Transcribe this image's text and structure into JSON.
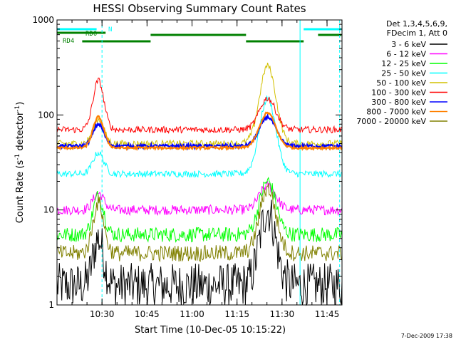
{
  "chart_data": {
    "type": "line",
    "title": "HESSI Observing Summary Count Rates",
    "xlabel": "Start Time (10-Dec-05 10:15:22)",
    "ylabel": "Count Rate (s⁻¹ detector⁻¹)",
    "ylabel_main": "Count Rate (s",
    "ylabel_sup1": "-1",
    "ylabel_mid": " detector",
    "ylabel_sup2": "-1",
    "ylabel_end": ")",
    "y_scale": "log",
    "ylim": [
      1,
      1000
    ],
    "xlim_minutes": [
      10.25,
      11.833
    ],
    "x_ticks": [
      {
        "label": "10:30",
        "t": 10.5
      },
      {
        "label": "10:45",
        "t": 10.75
      },
      {
        "label": "11:00",
        "t": 11.0
      },
      {
        "label": "11:15",
        "t": 11.25
      },
      {
        "label": "11:30",
        "t": 11.5
      },
      {
        "label": "11:45",
        "t": 11.75
      }
    ],
    "y_ticks": [
      {
        "label": "1",
        "v": 1
      },
      {
        "label": "10",
        "v": 10
      },
      {
        "label": "100",
        "v": 100
      },
      {
        "label": "1000",
        "v": 1000
      }
    ],
    "legend_header": [
      "Det 1,3,4,5,6,9,",
      "FDecim 1, Att 0"
    ],
    "legend_position": "right",
    "footer_date": "7-Dec-2009 17:38",
    "flag_labels": {
      "rd0": "RD0",
      "rd4": "RD4",
      "n": "N"
    },
    "series": [
      {
        "name": "3 - 6 keV",
        "color": "#000000",
        "base": 1.6,
        "peak1": 5,
        "peak2": 10
      },
      {
        "name": "6 - 12 keV",
        "color": "#ff00ff",
        "base": 10,
        "peak1": 15,
        "peak2": 18
      },
      {
        "name": "12 - 25 keV",
        "color": "#00ff00",
        "base": 5.5,
        "peak1": 14,
        "peak2": 20
      },
      {
        "name": "25 - 50 keV",
        "color": "#00ffff",
        "base": 24,
        "peak1": 40,
        "peak2": 150
      },
      {
        "name": "50 - 100 keV",
        "color": "#d2c000",
        "base": 50,
        "peak1": 90,
        "peak2": 330
      },
      {
        "name": "100 - 300 keV",
        "color": "#ff0000",
        "base": 70,
        "peak1": 230,
        "peak2": 150
      },
      {
        "name": "300 - 800 keV",
        "color": "#0000ff",
        "base": 47,
        "peak1": 80,
        "peak2": 95
      },
      {
        "name": "800 - 7000 keV",
        "color": "#ff8000",
        "base": 45,
        "peak1": 95,
        "peak2": 105
      },
      {
        "name": "7000 - 20000 keV",
        "color": "#808000",
        "base": 3.5,
        "peak1": 12,
        "peak2": 17
      }
    ]
  }
}
